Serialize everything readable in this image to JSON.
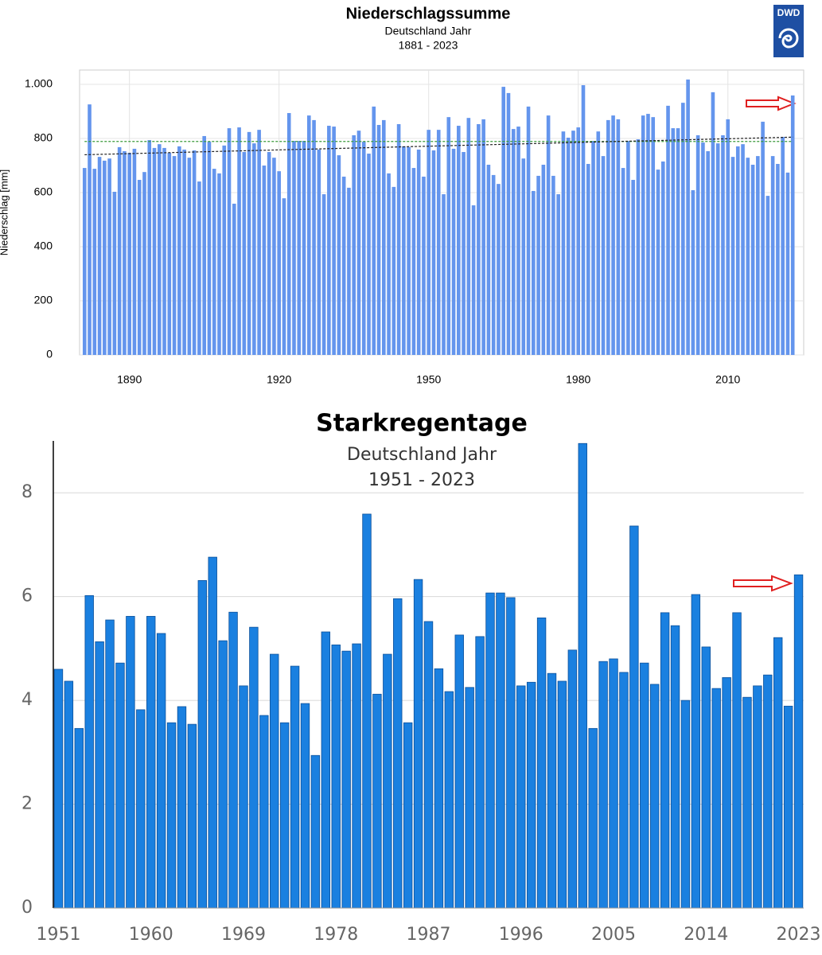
{
  "chart_data": [
    {
      "type": "bar",
      "title": "Niederschlagssumme",
      "subtitle": [
        "Deutschland Jahr",
        "1881 - 2023"
      ],
      "logo": "DWD",
      "ylabel": "Niederschlag [mm]",
      "x": [
        1881,
        1882,
        1883,
        1884,
        1885,
        1886,
        1887,
        1888,
        1889,
        1890,
        1891,
        1892,
        1893,
        1894,
        1895,
        1896,
        1897,
        1898,
        1899,
        1900,
        1901,
        1902,
        1903,
        1904,
        1905,
        1906,
        1907,
        1908,
        1909,
        1910,
        1911,
        1912,
        1913,
        1914,
        1915,
        1916,
        1917,
        1918,
        1919,
        1920,
        1921,
        1922,
        1923,
        1924,
        1925,
        1926,
        1927,
        1928,
        1929,
        1930,
        1931,
        1932,
        1933,
        1934,
        1935,
        1936,
        1937,
        1938,
        1939,
        1940,
        1941,
        1942,
        1943,
        1944,
        1945,
        1946,
        1947,
        1948,
        1949,
        1950,
        1951,
        1952,
        1953,
        1954,
        1955,
        1956,
        1957,
        1958,
        1959,
        1960,
        1961,
        1962,
        1963,
        1964,
        1965,
        1966,
        1967,
        1968,
        1969,
        1970,
        1971,
        1972,
        1973,
        1974,
        1975,
        1976,
        1977,
        1978,
        1979,
        1980,
        1981,
        1982,
        1983,
        1984,
        1985,
        1986,
        1987,
        1988,
        1989,
        1990,
        1991,
        1992,
        1993,
        1994,
        1995,
        1996,
        1997,
        1998,
        1999,
        2000,
        2001,
        2002,
        2003,
        2004,
        2005,
        2006,
        2007,
        2008,
        2009,
        2010,
        2011,
        2012,
        2013,
        2014,
        2015,
        2016,
        2017,
        2018,
        2019,
        2020,
        2021,
        2022,
        2023
      ],
      "values": [
        691,
        926,
        688,
        732,
        718,
        726,
        603,
        768,
        753,
        747,
        762,
        647,
        676,
        794,
        765,
        779,
        765,
        747,
        735,
        771,
        759,
        729,
        756,
        641,
        809,
        788,
        688,
        671,
        774,
        838,
        559,
        841,
        750,
        824,
        782,
        832,
        700,
        750,
        729,
        679,
        579,
        894,
        791,
        791,
        791,
        885,
        868,
        759,
        594,
        847,
        844,
        738,
        659,
        618,
        812,
        829,
        788,
        744,
        918,
        850,
        868,
        671,
        621,
        853,
        771,
        768,
        691,
        759,
        659,
        832,
        756,
        832,
        594,
        879,
        762,
        847,
        750,
        876,
        553,
        853,
        871,
        703,
        665,
        632,
        991,
        968,
        835,
        844,
        726,
        918,
        606,
        662,
        703,
        885,
        662,
        594,
        826,
        803,
        829,
        841,
        997,
        706,
        791,
        826,
        735,
        868,
        885,
        871,
        691,
        791,
        647,
        797,
        885,
        891,
        879,
        685,
        715,
        921,
        838,
        838,
        932,
        1018,
        609,
        812,
        785,
        753,
        971,
        782,
        812,
        871,
        732,
        771,
        779,
        729,
        703,
        735,
        862,
        588,
        735,
        706,
        806,
        674,
        959
      ],
      "color": "#6495ed",
      "lines": [
        {
          "color": "#3a9a3a",
          "values": [
            789,
            789
          ]
        },
        {
          "color": "#222222",
          "values": [
            740,
            805
          ]
        }
      ],
      "xlim": [
        1880,
        2025.2
      ],
      "xticks": [
        1890,
        1920,
        1950,
        1980,
        2010
      ],
      "ylim": [
        0,
        1053
      ],
      "yticks": [
        0,
        200,
        400,
        600,
        800,
        {
          "value": 1000,
          "label": "1.000"
        }
      ],
      "grid": true
    },
    {
      "type": "bar",
      "title": "Starkregentage",
      "subtitle": [
        "Deutschland Jahr",
        "1951 - 2023"
      ],
      "x": [
        1951,
        1952,
        1953,
        1954,
        1955,
        1956,
        1957,
        1958,
        1959,
        1960,
        1961,
        1962,
        1963,
        1964,
        1965,
        1966,
        1967,
        1968,
        1969,
        1970,
        1971,
        1972,
        1973,
        1974,
        1975,
        1976,
        1977,
        1978,
        1979,
        1980,
        1981,
        1982,
        1983,
        1984,
        1985,
        1986,
        1987,
        1988,
        1989,
        1990,
        1991,
        1992,
        1993,
        1994,
        1995,
        1996,
        1997,
        1998,
        1999,
        2000,
        2001,
        2002,
        2003,
        2004,
        2005,
        2006,
        2007,
        2008,
        2009,
        2010,
        2011,
        2012,
        2013,
        2014,
        2015,
        2016,
        2017,
        2018,
        2019,
        2020,
        2021,
        2022,
        2023
      ],
      "values": [
        4.6,
        4.37,
        3.46,
        6.02,
        5.13,
        5.55,
        4.72,
        5.62,
        3.82,
        5.62,
        5.29,
        3.57,
        3.88,
        3.54,
        6.31,
        6.76,
        5.15,
        5.7,
        4.28,
        5.41,
        3.71,
        4.89,
        3.57,
        4.66,
        3.94,
        2.94,
        5.32,
        5.07,
        4.95,
        5.09,
        7.59,
        4.12,
        4.89,
        5.96,
        3.57,
        6.33,
        5.52,
        4.61,
        4.17,
        5.26,
        4.25,
        5.23,
        6.07,
        6.07,
        5.98,
        4.28,
        4.35,
        5.59,
        4.52,
        4.37,
        4.97,
        8.95,
        3.46,
        4.75,
        4.8,
        4.54,
        7.36,
        4.72,
        4.31,
        5.69,
        5.44,
        4.0,
        6.04,
        5.03,
        4.23,
        4.44,
        5.69,
        4.06,
        4.28,
        4.49,
        5.21,
        3.89,
        6.42
      ],
      "color": "#1a80e0",
      "xlim": [
        1950.5,
        2023.5
      ],
      "xticks": [
        1951,
        1960,
        1969,
        1978,
        1987,
        1996,
        2005,
        2014,
        2023
      ],
      "ylim": [
        0,
        9
      ],
      "yticks": [
        0,
        2,
        4,
        6,
        8
      ],
      "grid": true
    }
  ]
}
